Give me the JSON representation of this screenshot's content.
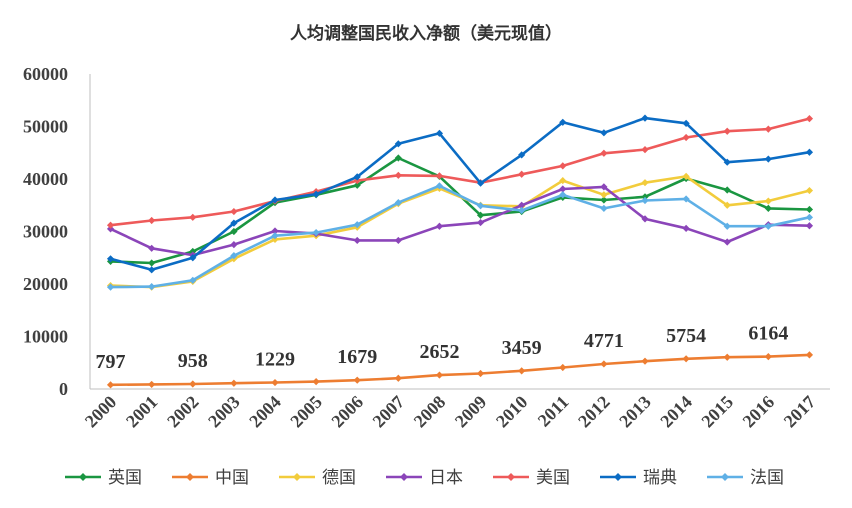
{
  "chart_data": {
    "type": "line",
    "title": "人均调整国民收入净额（美元现值）",
    "xlabel": "",
    "ylabel": "",
    "ylim": [
      0,
      60000
    ],
    "yticks": [
      0,
      10000,
      20000,
      30000,
      40000,
      50000,
      60000
    ],
    "ytick_labels": [
      "0",
      "10000",
      "20000",
      "30000",
      "40000",
      "50000",
      "60000"
    ],
    "categories": [
      "2000",
      "2001",
      "2002",
      "2003",
      "2004",
      "2005",
      "2006",
      "2007",
      "2008",
      "2009",
      "2010",
      "2011",
      "2012",
      "2013",
      "2014",
      "2015",
      "2016",
      "2017"
    ],
    "grid": false,
    "legend_position": "bottom",
    "series": [
      {
        "name": "英国",
        "color": "#1a9641",
        "values": [
          24300,
          24000,
          26200,
          30000,
          35500,
          37000,
          38800,
          44000,
          40500,
          33100,
          33800,
          36500,
          36000,
          36600,
          40100,
          37900,
          34400,
          34200
        ]
      },
      {
        "name": "中国",
        "color": "#ed7d31",
        "values": [
          797,
          870,
          958,
          1100,
          1229,
          1400,
          1679,
          2050,
          2652,
          2950,
          3459,
          4100,
          4771,
          5300,
          5754,
          6050,
          6164,
          6500
        ]
      },
      {
        "name": "德国",
        "color": "#f2cc3c",
        "values": [
          19700,
          19400,
          20500,
          24800,
          28500,
          29200,
          30800,
          35300,
          38200,
          35000,
          34800,
          39700,
          37000,
          39300,
          40500,
          35000,
          35800,
          37800
        ]
      },
      {
        "name": "日本",
        "color": "#8b45b9",
        "values": [
          30500,
          26800,
          25500,
          27500,
          30100,
          29600,
          28300,
          28300,
          31000,
          31700,
          35000,
          38100,
          38500,
          32400,
          30600,
          28000,
          31300,
          31100
        ]
      },
      {
        "name": "美国",
        "color": "#ee5a5a",
        "values": [
          31200,
          32100,
          32700,
          33800,
          35800,
          37600,
          39700,
          40700,
          40600,
          39300,
          40900,
          42500,
          44900,
          45600,
          47900,
          49100,
          49500,
          51500
        ]
      },
      {
        "name": "瑞典",
        "color": "#0b6cc4",
        "values": [
          24800,
          22700,
          25000,
          31600,
          36000,
          37100,
          40400,
          46700,
          48700,
          39200,
          44600,
          50800,
          48800,
          51600,
          50600,
          43200,
          43800,
          45100
        ]
      },
      {
        "name": "法国",
        "color": "#5fb0e6",
        "values": [
          19400,
          19500,
          20700,
          25400,
          29200,
          29800,
          31300,
          35500,
          38700,
          34900,
          34000,
          37000,
          34400,
          35900,
          36200,
          31000,
          31000,
          32700
        ]
      }
    ],
    "data_labels": {
      "series": "中国",
      "points": [
        {
          "category": "2000",
          "text": "797"
        },
        {
          "category": "2002",
          "text": "958"
        },
        {
          "category": "2004",
          "text": "1229"
        },
        {
          "category": "2006",
          "text": "1679"
        },
        {
          "category": "2008",
          "text": "2652"
        },
        {
          "category": "2010",
          "text": "3459"
        },
        {
          "category": "2012",
          "text": "4771"
        },
        {
          "category": "2014",
          "text": "5754"
        },
        {
          "category": "2016",
          "text": "6164"
        }
      ]
    }
  }
}
